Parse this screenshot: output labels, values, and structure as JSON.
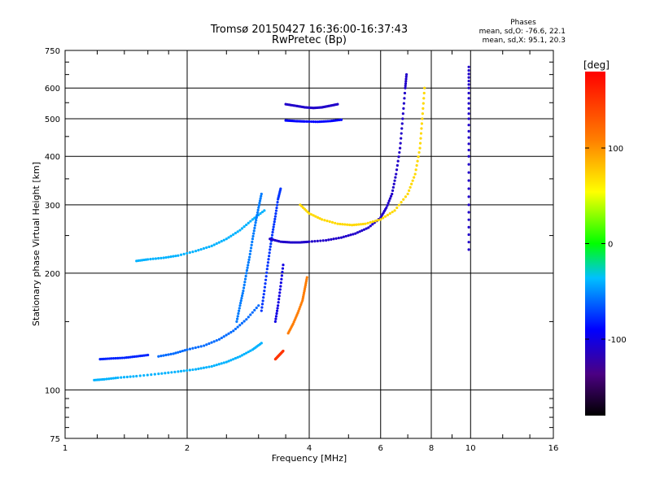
{
  "title_line1": "Tromsø 20150427 16:36:00-16:37:43",
  "title_line2": "RwPretec (Bp)",
  "phase_box": {
    "heading": "Phases",
    "line_o": "mean, sd,O: -76.6, 22.1",
    "line_x": "mean, sd,X:  95.1, 20.3"
  },
  "chart_data": {
    "type": "scatter",
    "xlabel": "Frequency [MHz]",
    "ylabel": "Stationary phase Virtual Height [km]",
    "x_scale": "log",
    "y_scale": "log",
    "xlim": [
      1,
      16
    ],
    "ylim": [
      75,
      750
    ],
    "x_ticks": [
      1,
      2,
      4,
      6,
      8,
      10,
      16
    ],
    "y_ticks": [
      75,
      100,
      200,
      300,
      400,
      500,
      600,
      750
    ],
    "grid": true,
    "colorbar": {
      "label": "[deg]",
      "range": [
        -180,
        180
      ],
      "ticks": [
        100,
        0,
        -100
      ]
    },
    "traces": [
      {
        "phase": -40,
        "points": [
          [
            1.18,
            106
          ],
          [
            1.25,
            106.5
          ],
          [
            1.35,
            107.5
          ],
          [
            1.5,
            108.5
          ],
          [
            1.7,
            110
          ],
          [
            1.9,
            111.5
          ],
          [
            2.1,
            113
          ],
          [
            2.3,
            115
          ],
          [
            2.5,
            118
          ],
          [
            2.7,
            122
          ],
          [
            2.9,
            127
          ],
          [
            3.05,
            132
          ]
        ]
      },
      {
        "phase": -80,
        "points": [
          [
            1.22,
            120
          ],
          [
            1.3,
            120.5
          ],
          [
            1.4,
            121
          ],
          [
            1.5,
            122
          ],
          [
            1.6,
            123
          ]
        ]
      },
      {
        "phase": -60,
        "points": [
          [
            1.7,
            122
          ],
          [
            1.85,
            124
          ],
          [
            2.0,
            127
          ],
          [
            2.2,
            130
          ],
          [
            2.4,
            135
          ],
          [
            2.6,
            142
          ],
          [
            2.8,
            152
          ],
          [
            3.0,
            165
          ]
        ]
      },
      {
        "phase": -40,
        "points": [
          [
            1.5,
            215
          ],
          [
            1.6,
            217
          ],
          [
            1.75,
            219
          ],
          [
            1.9,
            222
          ],
          [
            2.1,
            228
          ],
          [
            2.3,
            235
          ],
          [
            2.5,
            245
          ],
          [
            2.7,
            258
          ],
          [
            2.9,
            275
          ],
          [
            3.1,
            290
          ]
        ]
      },
      {
        "phase": -55,
        "points": [
          [
            2.65,
            150
          ],
          [
            2.7,
            165
          ],
          [
            2.75,
            180
          ],
          [
            2.8,
            200
          ],
          [
            2.85,
            220
          ],
          [
            2.9,
            245
          ],
          [
            2.95,
            270
          ],
          [
            3.0,
            295
          ],
          [
            3.05,
            320
          ]
        ]
      },
      {
        "phase": -75,
        "points": [
          [
            3.05,
            160
          ],
          [
            3.1,
            180
          ],
          [
            3.15,
            205
          ],
          [
            3.2,
            230
          ],
          [
            3.25,
            255
          ],
          [
            3.3,
            280
          ],
          [
            3.35,
            310
          ],
          [
            3.4,
            330
          ]
        ]
      },
      {
        "phase": -100,
        "points": [
          [
            3.3,
            150
          ],
          [
            3.35,
            165
          ],
          [
            3.4,
            185
          ],
          [
            3.45,
            210
          ]
        ]
      },
      {
        "phase": 150,
        "points": [
          [
            3.3,
            120
          ],
          [
            3.35,
            122
          ],
          [
            3.4,
            124
          ],
          [
            3.45,
            126
          ]
        ]
      },
      {
        "phase": 110,
        "points": [
          [
            3.55,
            140
          ],
          [
            3.65,
            148
          ],
          [
            3.75,
            158
          ],
          [
            3.85,
            170
          ],
          [
            3.9,
            182
          ],
          [
            3.95,
            195
          ]
        ]
      },
      {
        "phase": -110,
        "points": [
          [
            3.2,
            245
          ],
          [
            3.4,
            241
          ],
          [
            3.6,
            240
          ],
          [
            3.8,
            240
          ],
          [
            4.0,
            241
          ],
          [
            4.4,
            243
          ],
          [
            4.8,
            247
          ],
          [
            5.2,
            253
          ],
          [
            5.6,
            262
          ],
          [
            6.0,
            278
          ],
          [
            6.2,
            295
          ],
          [
            6.4,
            320
          ],
          [
            6.55,
            360
          ],
          [
            6.7,
            420
          ],
          [
            6.8,
            500
          ],
          [
            6.9,
            600
          ],
          [
            6.95,
            650
          ]
        ]
      },
      {
        "phase": 70,
        "points": [
          [
            3.8,
            300
          ],
          [
            4.0,
            285
          ],
          [
            4.3,
            275
          ],
          [
            4.7,
            268
          ],
          [
            5.1,
            266
          ],
          [
            5.5,
            268
          ],
          [
            6.0,
            275
          ],
          [
            6.5,
            290
          ],
          [
            7.0,
            320
          ],
          [
            7.3,
            360
          ],
          [
            7.5,
            420
          ],
          [
            7.6,
            500
          ],
          [
            7.7,
            600
          ]
        ]
      },
      {
        "phase": -110,
        "points": [
          [
            3.5,
            545
          ],
          [
            3.7,
            540
          ],
          [
            3.9,
            535
          ],
          [
            4.1,
            533
          ],
          [
            4.3,
            535
          ],
          [
            4.5,
            540
          ],
          [
            4.7,
            545
          ]
        ]
      },
      {
        "phase": -90,
        "points": [
          [
            3.5,
            495
          ],
          [
            3.7,
            493
          ],
          [
            3.9,
            492
          ],
          [
            4.2,
            491
          ],
          [
            4.5,
            493
          ],
          [
            4.8,
            497
          ]
        ]
      },
      {
        "phase": -110,
        "points": [
          [
            9.9,
            230
          ],
          [
            9.9,
            300
          ],
          [
            9.9,
            400
          ],
          [
            9.9,
            500
          ],
          [
            9.9,
            600
          ],
          [
            9.9,
            680
          ]
        ]
      }
    ]
  }
}
